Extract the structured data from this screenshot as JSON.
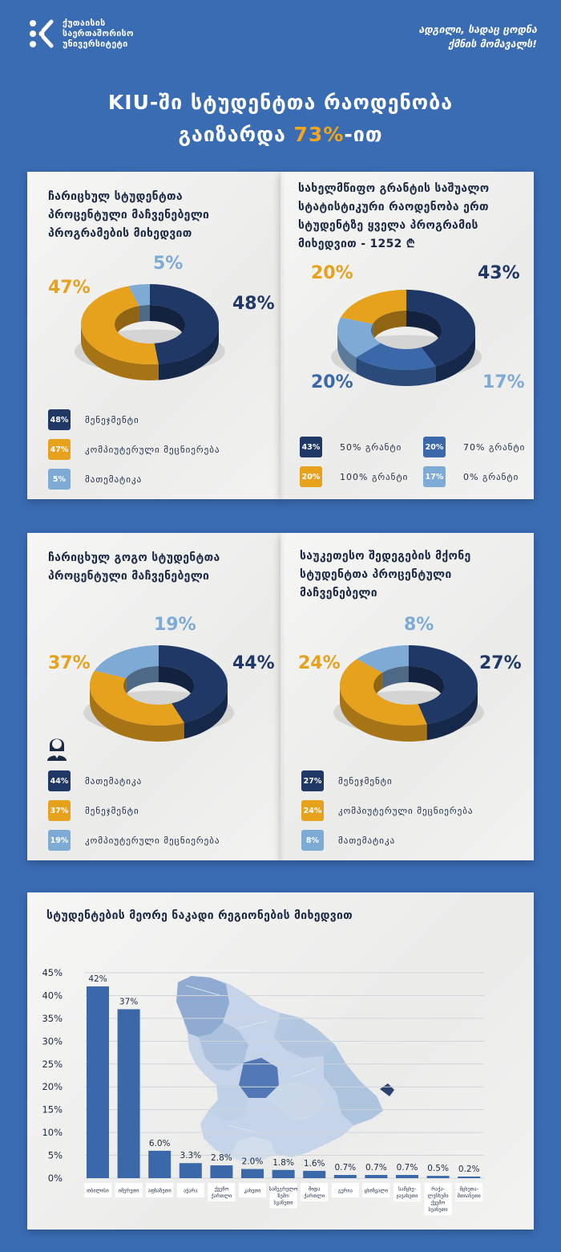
{
  "header": {
    "logo_lines": [
      "ქუთაისის",
      "საერთაშორისო",
      "უნივერსიტეტი"
    ],
    "slogan_lines": [
      "ადგილი, სადაც ცოდნა",
      "ქმნის მომავალს!"
    ],
    "headline_line1": "KIU-ში სტუდენტთა რაოდენობა",
    "headline_line2_prefix": "გაიზარდა ",
    "headline_line2_accent": "73%",
    "headline_line2_suffix": "-ით"
  },
  "colors": {
    "dark": "#1f3866",
    "gold": "#e6a11d",
    "light": "#7eaad6",
    "mid": "#3b68a8",
    "background": "#3a6cb4"
  },
  "chart_data": [
    {
      "type": "pie",
      "title": "ჩარიცხულ სტუდენტთა პროცენტული მაჩვენებელი პროგრამების მიხედვით",
      "title_lines": [
        "ჩარიცხულ სტუდენტთა",
        "პროცენტული მაჩვენებელი",
        "პროგრამების მიხედვით"
      ],
      "slices": [
        {
          "label": "მენეჯმენტი",
          "value": 48,
          "display": "48%",
          "color": "#1f3866"
        },
        {
          "label": "კომპიუტერული მეცნიერება",
          "value": 47,
          "display": "47%",
          "color": "#e6a11d"
        },
        {
          "label": "მათემატიკა",
          "value": 5,
          "display": "5%",
          "color": "#7eaad6"
        }
      ]
    },
    {
      "type": "pie",
      "title": "სახელმწიფო გრანტის საშუალო სტატისტიკური რაოდენობა ერთ სტუდენტზე ყველა პროგრამის მიხედვით - 1252 ₾",
      "title_lines": [
        "სახელმწიფო გრანტის საშუალო",
        "სტატისტიკური რაოდენობა ერთ",
        "სტუდენტზე  ყველა პროგრამის",
        "მიხედვით - "
      ],
      "amount": "1252 ₾",
      "slices": [
        {
          "label": "50% გრანტი",
          "value": 43,
          "display": "43%",
          "color": "#1f3866"
        },
        {
          "label": "70% გრანტი",
          "value": 20,
          "display": "20%",
          "color": "#3b68a8"
        },
        {
          "label": "0% გრანტი",
          "value": 17,
          "display": "17%",
          "color": "#7eaad6"
        },
        {
          "label": "100% გრანტი",
          "value": 20,
          "display": "20%",
          "color": "#e6a11d"
        }
      ]
    },
    {
      "type": "pie",
      "title": "ჩარიცხულ გოგო სტუდენტთა პროცენტული მაჩვენებელი",
      "title_lines": [
        "ჩარიცხულ გოგო სტუდენტთა",
        "პროცენტული მაჩვენებელი"
      ],
      "slices": [
        {
          "label": "მათემატიკა",
          "value": 44,
          "display": "44%",
          "color": "#1f3866"
        },
        {
          "label": "მენეჯმენტი",
          "value": 37,
          "display": "37%",
          "color": "#e6a11d"
        },
        {
          "label": "კომპიუტერული მეცნიერება",
          "value": 19,
          "display": "19%",
          "color": "#7eaad6"
        }
      ]
    },
    {
      "type": "pie",
      "title": "საუკეთესო შედეგების მქონე სტუდენტთა პროცენტული მაჩვენებელი",
      "title_lines": [
        "საუკეთესო შედეგების მქონე",
        "სტუდენტთა პროცენტული",
        "მაჩვენებელი"
      ],
      "slices": [
        {
          "label": "მენეჯმენტი",
          "value": 27,
          "display": "27%",
          "color": "#1f3866"
        },
        {
          "label": "კომპიუტერული მეცნიერება",
          "value": 24,
          "display": "24%",
          "color": "#e6a11d"
        },
        {
          "label": "მათემატიკა",
          "value": 8,
          "display": "8%",
          "color": "#7eaad6"
        }
      ]
    },
    {
      "type": "bar",
      "title": "სტუდენტების მეორე ნაკადი რეგიონების მიხედვით",
      "ylim": [
        0,
        45
      ],
      "yticks": [
        "0%",
        "5%",
        "10%",
        "15%",
        "20%",
        "25%",
        "30%",
        "35%",
        "40%",
        "45%"
      ],
      "grid": true,
      "categories": [
        [
          "თბილისი"
        ],
        [
          "იმერეთი"
        ],
        [
          "აფხაზეთი"
        ],
        [
          "აჭარა"
        ],
        [
          "ქვემო",
          "ქართლი"
        ],
        [
          "კახეთი"
        ],
        [
          "სამეგრელო",
          "ზემო",
          "სვანეთი"
        ],
        [
          "შიდა",
          "ქართლი"
        ],
        [
          "გურია"
        ],
        [
          "ცხინვალი"
        ],
        [
          "სამცხე-",
          "ჯავახეთი"
        ],
        [
          "რაჭა-",
          "ლეჩხუმი",
          "ქვემო",
          "სვანეთი"
        ],
        [
          "მცხეთა-",
          "მთიანეთი"
        ]
      ],
      "values": [
        42,
        37,
        6.0,
        3.3,
        2.8,
        2.0,
        1.8,
        1.6,
        0.7,
        0.7,
        0.7,
        0.5,
        0.2
      ],
      "value_labels": [
        "42%",
        "37%",
        "6.0%",
        "3.3%",
        "2.8%",
        "2.0%",
        "1.8%",
        "1.6%",
        "0.7%",
        "0.7%",
        "0.7%",
        "0.5%",
        "0.2%"
      ],
      "color": "#3b68a8"
    }
  ]
}
